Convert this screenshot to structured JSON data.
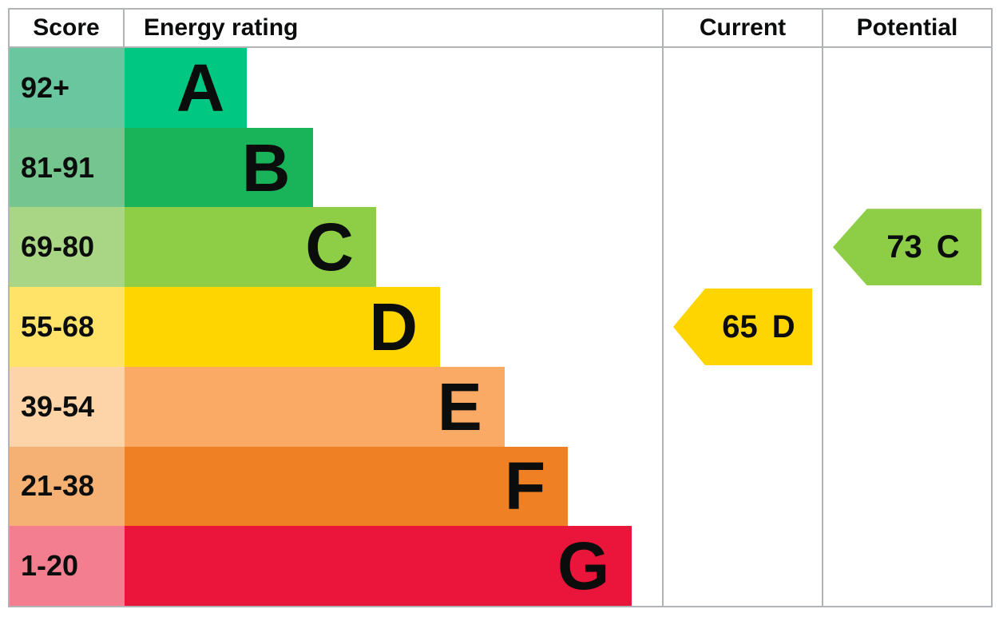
{
  "headers": {
    "score": "Score",
    "rating": "Energy rating",
    "current": "Current",
    "potential": "Potential"
  },
  "bands": [
    {
      "score": "92+",
      "letter": "A",
      "band_color": "#00c781",
      "score_color": "#69c69f",
      "width_pct": 22.8
    },
    {
      "score": "81-91",
      "letter": "B",
      "band_color": "#19b459",
      "score_color": "#74c58e",
      "width_pct": 35.0
    },
    {
      "score": "69-80",
      "letter": "C",
      "band_color": "#8dce46",
      "score_color": "#a9d685",
      "width_pct": 46.8
    },
    {
      "score": "55-68",
      "letter": "D",
      "band_color": "#ffd500",
      "score_color": "#ffe369",
      "width_pct": 58.7
    },
    {
      "score": "39-54",
      "letter": "E",
      "band_color": "#fbaa65",
      "score_color": "#fdd3a8",
      "width_pct": 70.7
    },
    {
      "score": "21-38",
      "letter": "F",
      "band_color": "#ef8023",
      "score_color": "#f5b074",
      "width_pct": 82.5
    },
    {
      "score": "1-20",
      "letter": "G",
      "band_color": "#e9153b",
      "score_color": "#f27e90",
      "width_pct": 94.4
    }
  ],
  "current": {
    "value": "65",
    "letter": "D",
    "color": "#ffd500"
  },
  "potential": {
    "value": "73",
    "letter": "C",
    "color": "#8dce46"
  },
  "colors": {
    "border": "#b1b4b6",
    "text": "#0b0c0c",
    "background": "#ffffff"
  },
  "chart_data": {
    "type": "bar",
    "title": "Energy rating (EPC) chart",
    "orientation": "horizontal",
    "columns": [
      "Score",
      "Energy rating",
      "Current",
      "Potential"
    ],
    "categories": [
      "A",
      "B",
      "C",
      "D",
      "E",
      "F",
      "G"
    ],
    "score_ranges": [
      "92+",
      "81-91",
      "69-80",
      "55-68",
      "39-54",
      "21-38",
      "1-20"
    ],
    "bar_width_percent": [
      22.8,
      35.0,
      46.8,
      58.7,
      70.7,
      82.5,
      94.4
    ],
    "band_colors": [
      "#00c781",
      "#19b459",
      "#8dce46",
      "#ffd500",
      "#fbaa65",
      "#ef8023",
      "#e9153b"
    ],
    "current_rating": {
      "score": 65,
      "grade": "D"
    },
    "potential_rating": {
      "score": 73,
      "grade": "C"
    },
    "grid": false,
    "legend_position": "none"
  }
}
